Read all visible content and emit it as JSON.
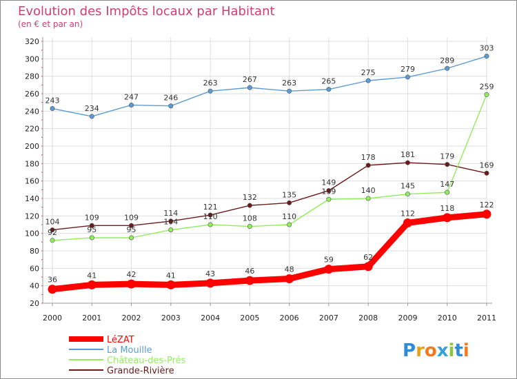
{
  "chart_data": {
    "type": "line",
    "title": "Evolution des Impôts locaux par Habitant",
    "subtitle": "(en € et par an)",
    "xlabel": "",
    "ylabel": "",
    "ylim": [
      20,
      320
    ],
    "yticks": [
      20,
      40,
      60,
      80,
      100,
      120,
      140,
      160,
      180,
      200,
      220,
      240,
      260,
      280,
      300,
      320
    ],
    "categories": [
      "2000",
      "2001",
      "2002",
      "2003",
      "2004",
      "2005",
      "2006",
      "2007",
      "2008",
      "2009",
      "2010",
      "2011"
    ],
    "grid": true,
    "legend_position": "bottom-left",
    "series": [
      {
        "name": "LéZAT",
        "color": "#ff0000",
        "values": [
          36,
          41,
          42,
          41,
          43,
          46,
          48,
          59,
          62,
          112,
          118,
          122
        ],
        "labels": [
          "36",
          "41",
          "42",
          "41",
          "43",
          "46",
          "48",
          "59",
          "62",
          "112",
          "118",
          "122"
        ]
      },
      {
        "name": "La Mouille",
        "color": "#5a9bd5",
        "values": [
          243,
          234,
          247,
          246,
          263,
          267,
          263,
          265,
          275,
          279,
          289,
          303
        ],
        "labels": [
          "243",
          "234",
          "247",
          "246",
          "263",
          "267",
          "263",
          "265",
          "275",
          "279",
          "289",
          "303"
        ]
      },
      {
        "name": "Château-des-Prés",
        "color": "#90ee5a",
        "values": [
          92,
          95,
          95,
          104,
          110,
          108,
          110,
          139,
          140,
          145,
          147,
          259
        ],
        "labels": [
          "92",
          "95",
          "95",
          "104",
          "110",
          "108",
          "110",
          "139",
          "140",
          "145",
          "147",
          "259"
        ]
      },
      {
        "name": "Grande-Rivière",
        "color": "#6b1a1a",
        "values": [
          104,
          109,
          109,
          114,
          121,
          132,
          135,
          149,
          178,
          181,
          179,
          169
        ],
        "labels": [
          "104",
          "109",
          "109",
          "114",
          "121",
          "132",
          "135",
          "149",
          "178",
          "181",
          "179",
          "169"
        ]
      }
    ]
  },
  "logo": {
    "text": "Proxiti",
    "letters": [
      "P",
      "r",
      "o",
      "x",
      "i",
      "t",
      "i"
    ]
  }
}
